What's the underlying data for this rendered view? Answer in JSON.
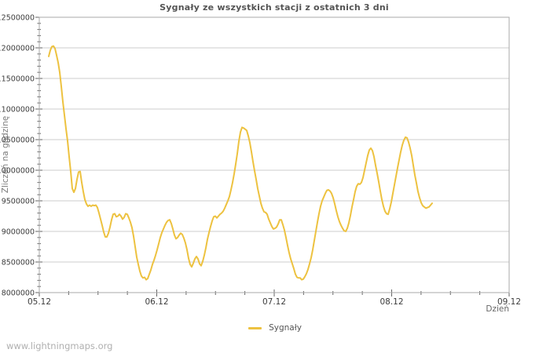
{
  "page": {
    "watermark": "www.lightningmaps.org"
  },
  "chart_data": {
    "type": "line",
    "title": "Sygnały ze wszystkich stacji z ostatnich 3 dni",
    "xlabel": "Dzień",
    "ylabel": "Zliczeń na godzinę",
    "grid": "horizontal-gridlines-only",
    "legend": {
      "position": "bottom-center",
      "entries": [
        {
          "label": "Sygnały",
          "color": "#EDC240"
        }
      ]
    },
    "ylim": [
      8000000,
      12500000
    ],
    "xlim_days": [
      0,
      4
    ],
    "yticks": [
      {
        "v": 8000000,
        "label": "8000000"
      },
      {
        "v": 8500000,
        "label": "8500000"
      },
      {
        "v": 9000000,
        "label": "9000000"
      },
      {
        "v": 9500000,
        "label": "9500000"
      },
      {
        "v": 10000000,
        "label": "10000000"
      },
      {
        "v": 10500000,
        "label": "10500000"
      },
      {
        "v": 11000000,
        "label": "11000000"
      },
      {
        "v": 11500000,
        "label": "11500000"
      },
      {
        "v": 12000000,
        "label": "12000000"
      },
      {
        "v": 12500000,
        "label": "12500000"
      }
    ],
    "y_minor_step": 100000,
    "xticks": [
      {
        "t": 0,
        "label": "05.12"
      },
      {
        "t": 1,
        "label": "06.12"
      },
      {
        "t": 2,
        "label": "07.12"
      },
      {
        "t": 3,
        "label": "08.12"
      },
      {
        "t": 4,
        "label": "09.12"
      }
    ],
    "x_minor_step_days": 0.25,
    "series": [
      {
        "name": "Sygnały",
        "color": "#EDC240",
        "unit": "zliczeń na godzinę (millions)",
        "t0_days": 0.08,
        "dt_days": 0.013378,
        "values_millions": [
          11.86,
          11.96,
          12.02,
          12.03,
          11.99,
          11.88,
          11.76,
          11.6,
          11.37,
          11.12,
          10.9,
          10.68,
          10.48,
          10.22,
          9.98,
          9.7,
          9.64,
          9.7,
          9.85,
          9.97,
          9.98,
          9.8,
          9.65,
          9.52,
          9.45,
          9.41,
          9.43,
          9.41,
          9.43,
          9.42,
          9.43,
          9.39,
          9.3,
          9.2,
          9.1,
          8.99,
          8.91,
          8.91,
          8.97,
          9.07,
          9.19,
          9.28,
          9.29,
          9.24,
          9.25,
          9.28,
          9.25,
          9.2,
          9.23,
          9.29,
          9.28,
          9.22,
          9.15,
          9.06,
          8.92,
          8.75,
          8.58,
          8.46,
          8.35,
          8.27,
          8.24,
          8.25,
          8.21,
          8.23,
          8.3,
          8.37,
          8.46,
          8.53,
          8.61,
          8.7,
          8.8,
          8.9,
          8.98,
          9.04,
          9.1,
          9.15,
          9.18,
          9.19,
          9.13,
          9.04,
          8.94,
          8.88,
          8.9,
          8.94,
          8.97,
          8.95,
          8.89,
          8.81,
          8.7,
          8.56,
          8.46,
          8.42,
          8.48,
          8.55,
          8.59,
          8.55,
          8.47,
          8.44,
          8.51,
          8.61,
          8.73,
          8.87,
          8.98,
          9.08,
          9.17,
          9.24,
          9.25,
          9.22,
          9.25,
          9.28,
          9.3,
          9.33,
          9.38,
          9.44,
          9.5,
          9.57,
          9.68,
          9.8,
          9.94,
          10.1,
          10.27,
          10.47,
          10.62,
          10.7,
          10.69,
          10.67,
          10.65,
          10.56,
          10.45,
          10.3,
          10.14,
          9.99,
          9.85,
          9.7,
          9.58,
          9.46,
          9.38,
          9.32,
          9.31,
          9.28,
          9.2,
          9.14,
          9.08,
          9.04,
          9.05,
          9.07,
          9.12,
          9.19,
          9.19,
          9.11,
          9.02,
          8.9,
          8.77,
          8.65,
          8.55,
          8.47,
          8.39,
          8.3,
          8.25,
          8.24,
          8.24,
          8.21,
          8.22,
          8.26,
          8.31,
          8.38,
          8.47,
          8.57,
          8.7,
          8.85,
          9.0,
          9.15,
          9.29,
          9.41,
          9.5,
          9.56,
          9.62,
          9.67,
          9.68,
          9.66,
          9.62,
          9.55,
          9.45,
          9.34,
          9.24,
          9.16,
          9.1,
          9.05,
          9.01,
          9.0,
          9.05,
          9.14,
          9.26,
          9.4,
          9.52,
          9.65,
          9.74,
          9.78,
          9.77,
          9.8,
          9.88,
          10.0,
          10.12,
          10.24,
          10.33,
          10.36,
          10.32,
          10.22,
          10.08,
          9.95,
          9.81,
          9.66,
          9.52,
          9.41,
          9.33,
          9.29,
          9.28,
          9.37,
          9.48,
          9.62,
          9.76,
          9.9,
          10.04,
          10.17,
          10.3,
          10.41,
          10.49,
          10.54,
          10.53,
          10.46,
          10.36,
          10.24,
          10.08,
          9.92,
          9.79,
          9.65,
          9.55,
          9.47,
          9.42,
          9.4,
          9.38,
          9.39,
          9.4,
          9.43,
          9.46
        ]
      }
    ],
    "colors": {
      "line": "#EDC240",
      "grid": "#CCCCCC",
      "frame": "#AAAAAA",
      "tick": "#666666",
      "tick_label": "#3C3C3C",
      "title": "#545454",
      "axis_label": "#777777",
      "legend_label": "#555555",
      "watermark": "#B0B0B0",
      "background": "#FFFFFF"
    }
  }
}
